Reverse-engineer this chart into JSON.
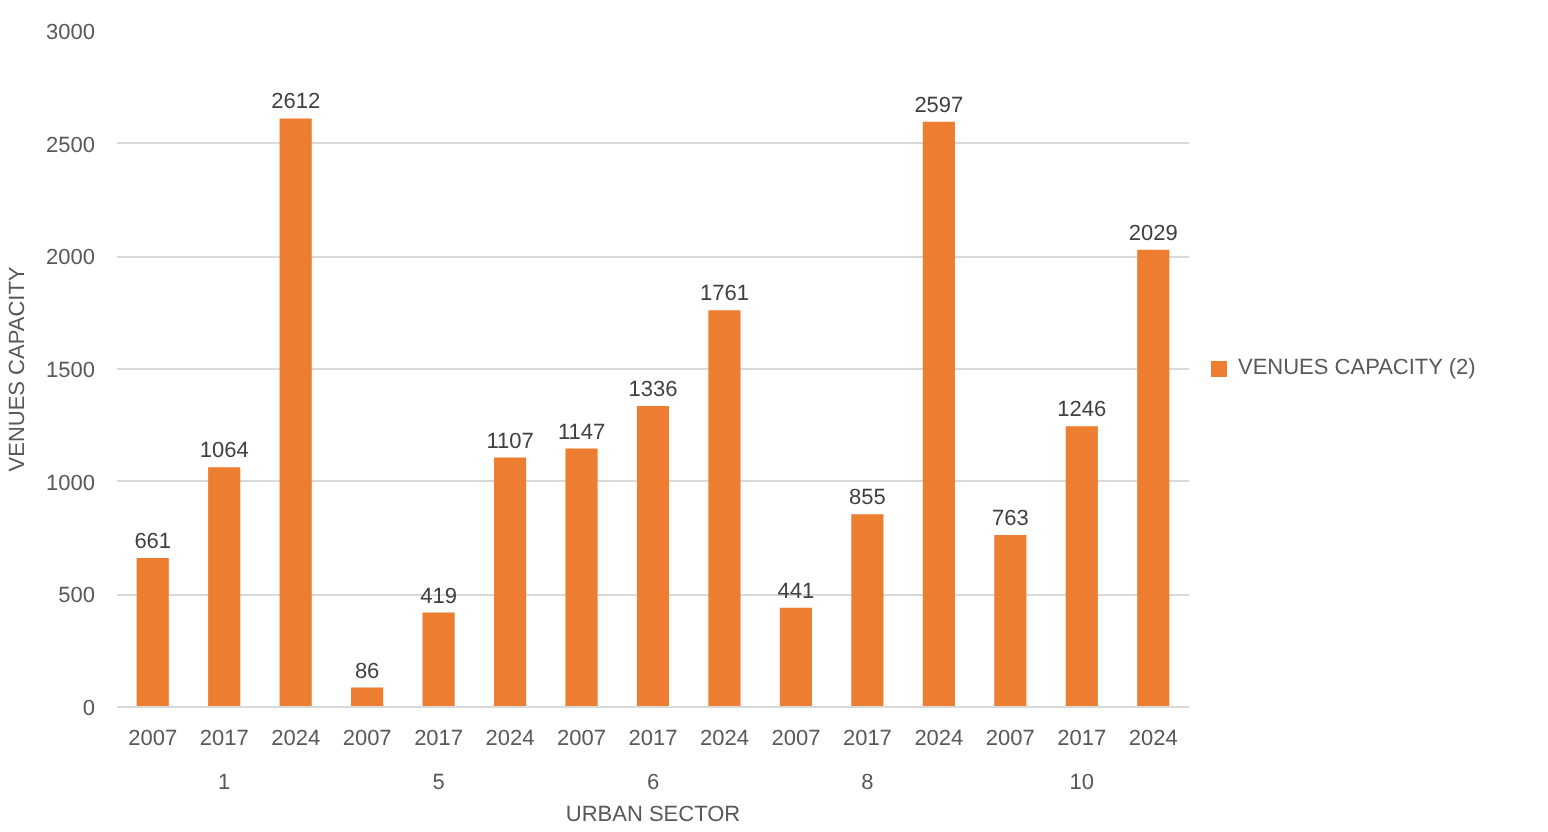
{
  "chart_data": {
    "type": "bar",
    "xlabel": "URBAN SECTOR",
    "ylabel": "VENUES CAPACITY",
    "categories": [
      "2007",
      "2017",
      "2024",
      "2007",
      "2017",
      "2024",
      "2007",
      "2017",
      "2024",
      "2007",
      "2017",
      "2024",
      "2007",
      "2017",
      "2024"
    ],
    "annotations": [
      "1",
      "5",
      "6",
      "8",
      "10"
    ],
    "series": [
      {
        "name": "VENUES CAPACITY (2)",
        "color": "#ed7d31",
        "values": [
          661,
          1064,
          2612,
          86,
          419,
          1107,
          1147,
          1336,
          1761,
          441,
          855,
          2597,
          763,
          1246,
          2029
        ]
      }
    ],
    "ylim": [
      0,
      3000
    ],
    "yticks": [
      0,
      500,
      1000,
      1500,
      2000,
      2500,
      3000
    ],
    "grid": "y",
    "legend": "right",
    "data_labels": true
  }
}
